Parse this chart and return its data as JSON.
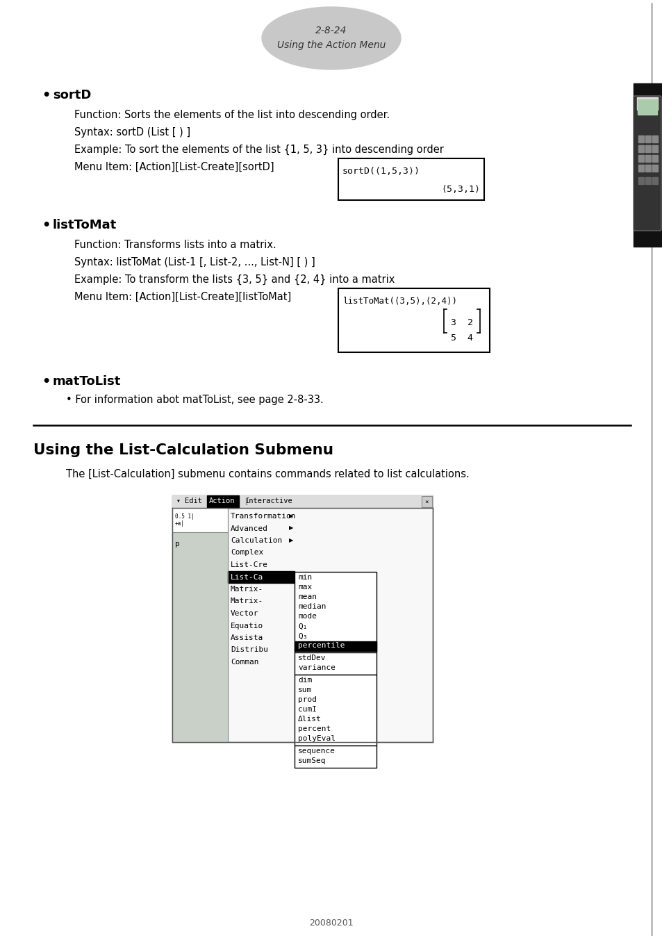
{
  "page_number": "2-8-24",
  "page_subtitle": "Using the Action Menu",
  "bg_color": "#ffffff",
  "section1_bullet": "sortD",
  "section1_lines": [
    "Function: Sorts the elements of the list into descending order.",
    "Syntax: sortD (List [ ) ]",
    "Example: To sort the elements of the list {1, 5, 3} into descending order",
    "Menu Item: [Action][List-Create][sortD]"
  ],
  "sortd_screen_line1": "sortD(⟨1,5,3⟩)",
  "sortd_screen_line2": "⟨5,3,1⟩",
  "section2_bullet": "listToMat",
  "section2_lines": [
    "Function: Transforms lists into a matrix.",
    "Syntax: listToMat (List-1 [, List-2, ..., List-N] [ ) ]",
    "Example: To transform the lists {3, 5} and {2, 4} into a matrix",
    "Menu Item: [Action][List-Create][listToMat]"
  ],
  "listtomat_screen_line1": "listToMat(⟨3,5⟩,⟨2,4⟩)",
  "section3_bullet": "matToList",
  "section3_sub": "• For information abot matToList, see page 2-8-33.",
  "heading": "Using the List-Calculation Submenu",
  "heading_desc": "The [List-Calculation] submenu contains commands related to list calculations.",
  "footer": "20080201",
  "left_menu_items": [
    "Transformation",
    "Advanced",
    "Calculation",
    "Complex",
    "List-Cre",
    "List-Ca",
    "Matrix-",
    "Matrix-",
    "Vector",
    "Equatio",
    "Assista",
    "Distribu",
    "Comman"
  ],
  "sub_items_top": [
    "min",
    "max",
    "mean",
    "median",
    "mode",
    "Q₁",
    "Q₃",
    "percentile"
  ],
  "sub_items_mid": [
    "stdDev",
    "variance"
  ],
  "sub_items_bot": [
    "dim",
    "sum",
    "prod",
    "cumI",
    "Δlist",
    "percent",
    "polyEval"
  ],
  "sub_items_last": [
    "sequence",
    "sumSeq"
  ]
}
